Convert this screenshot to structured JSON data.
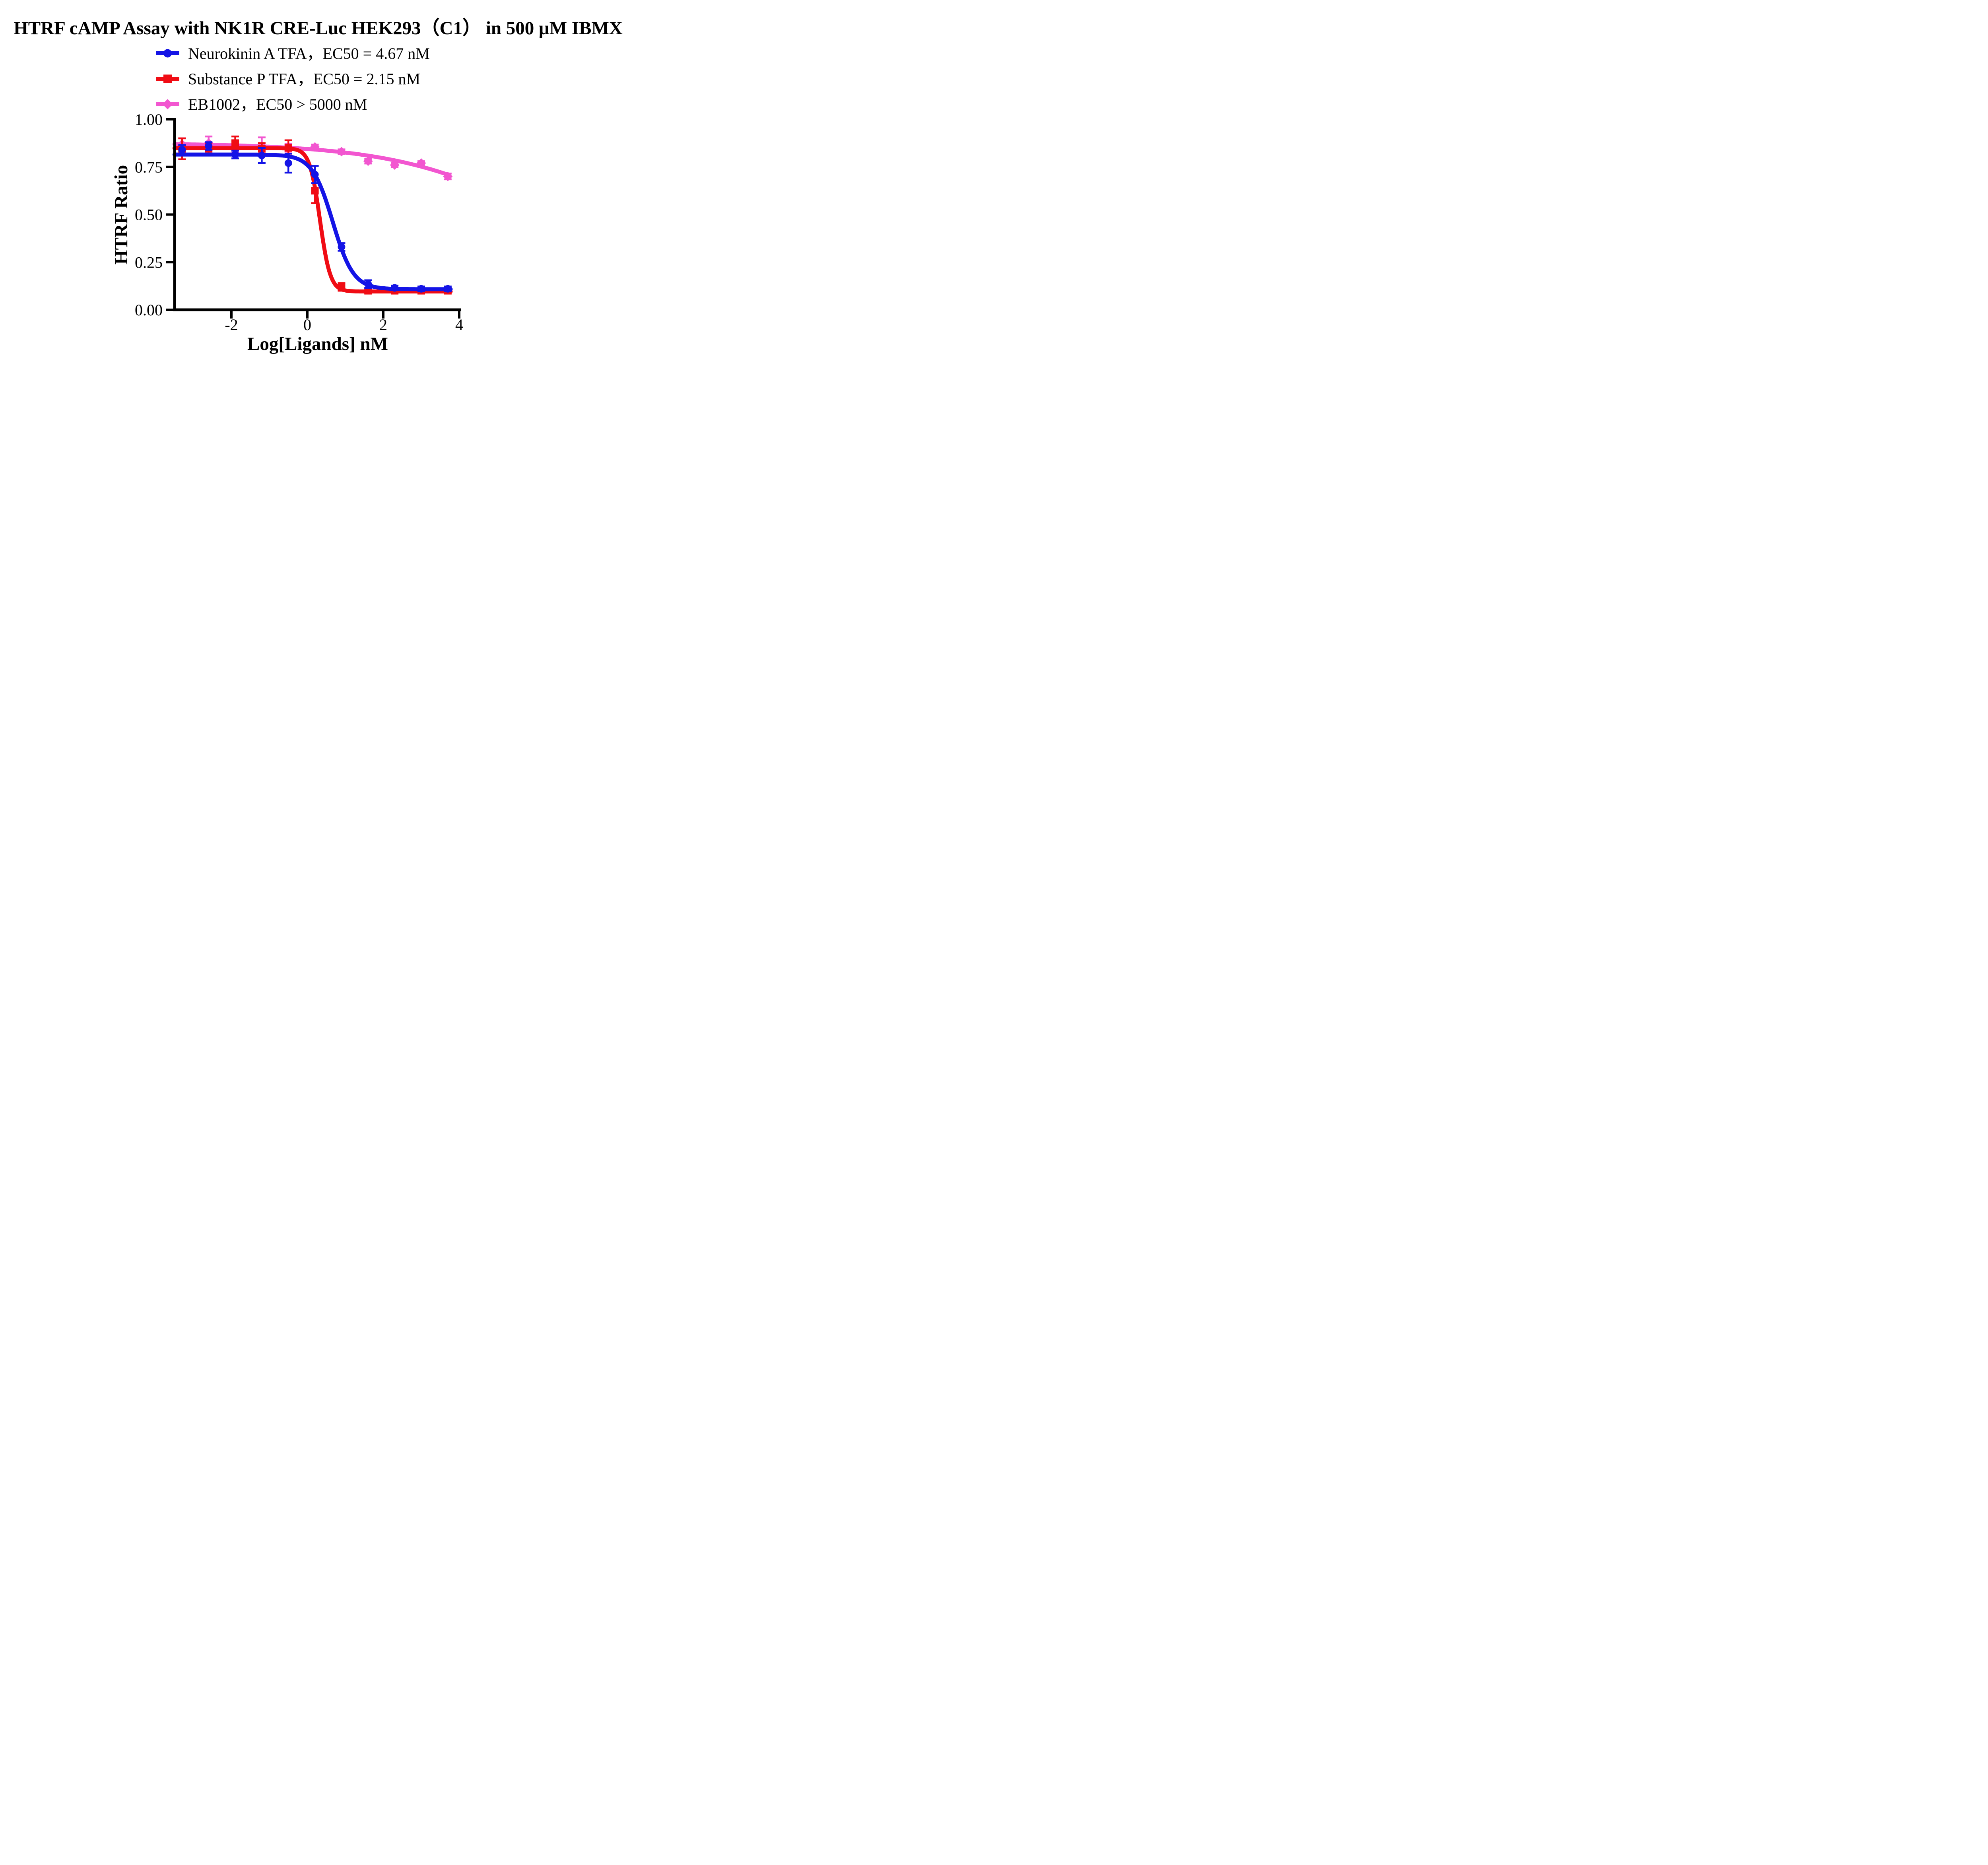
{
  "title": "HTRF cAMP Assay with NK1R CRE-Luc HEK293（C1） in 500 μM IBMX",
  "legend": [
    {
      "label": "Neurokinin A TFA，EC50 = 4.67 nM",
      "marker": "circle",
      "color": "#1414E6"
    },
    {
      "label": "Substance P TFA，EC50 = 2.15 nM",
      "marker": "square",
      "color": "#F00C14"
    },
    {
      "label": "EB1002，EC50 > 5000 nM",
      "marker": "diamond",
      "color": "#F256D0"
    }
  ],
  "chart_data": {
    "type": "scatter",
    "title": "HTRF cAMP Assay with NK1R CRE-Luc HEK293（C1） in 500 μM IBMX",
    "xlabel": "Log[Ligands] nM",
    "ylabel": "HTRF Ratio",
    "grid": false,
    "legend_position": "top",
    "x_axis": {
      "ticks": [
        -2,
        0,
        2,
        4
      ],
      "tick_labels": [
        "-2",
        "0",
        "2",
        "4"
      ],
      "range": [
        -3.5,
        4.05
      ]
    },
    "y_axis": {
      "ticks": [
        1.0,
        0.75,
        0.5,
        0.25,
        0.0
      ],
      "tick_labels": [
        "1.00",
        "0.75",
        "0.50",
        "0.25",
        "0.00"
      ],
      "range": [
        0,
        1
      ]
    },
    "x": [
      -3.3,
      -2.6,
      -1.9,
      -1.2,
      -0.5,
      0.2,
      0.9,
      1.6,
      2.3,
      3.0,
      3.7
    ],
    "series": [
      {
        "name": "Neurokinin A TFA",
        "ec50": "EC50 = 4.67 nM",
        "ec50_nM": "4.67",
        "color": "#1414E6",
        "marker": "circle",
        "values": [
          0.84,
          0.86,
          0.815,
          0.81,
          0.77,
          0.71,
          0.33,
          0.135,
          0.115,
          0.11,
          0.11
        ],
        "errors": [
          0.025,
          0.02,
          0.02,
          0.04,
          0.05,
          0.045,
          0.02,
          0.02,
          0.012,
          0.012,
          0.012
        ],
        "fit": {
          "top": 0.815,
          "bottom": 0.108,
          "logEC50": 0.669,
          "hill": -1.6,
          "x_start": -3.5,
          "x_end": 3.78
        }
      },
      {
        "name": "Substance P TFA",
        "ec50": "EC50 = 2.15 nM",
        "ec50_nM": "2.15",
        "color": "#F00C14",
        "marker": "square",
        "values": [
          0.845,
          0.845,
          0.875,
          0.845,
          0.85,
          0.625,
          0.12,
          0.1,
          0.1,
          0.1,
          0.1
        ],
        "errors": [
          0.055,
          0.03,
          0.035,
          0.03,
          0.04,
          0.065,
          0.02,
          0.012,
          0.01,
          0.01,
          0.01
        ],
        "fit": {
          "top": 0.848,
          "bottom": 0.096,
          "logEC50": 0.332,
          "hill": -3.2,
          "x_start": -3.5,
          "x_end": 3.78
        }
      },
      {
        "name": "EB1002",
        "ec50": "EC50 > 5000 nM",
        "ec50_nM": ">5000",
        "color": "#F256D0",
        "marker": "diamond",
        "values": [
          0.87,
          0.875,
          0.855,
          0.86,
          0.85,
          0.855,
          0.83,
          0.78,
          0.76,
          0.77,
          0.7
        ],
        "errors": [
          0.03,
          0.035,
          0.03,
          0.045,
          0.02,
          0.012,
          0.012,
          0.012,
          0.01,
          0.01,
          0.015
        ],
        "fit": {
          "top": 0.875,
          "bottom": 0.0,
          "logEC50": 6.6,
          "hill": -0.218,
          "x_start": -3.5,
          "x_end": 3.74
        }
      }
    ]
  }
}
